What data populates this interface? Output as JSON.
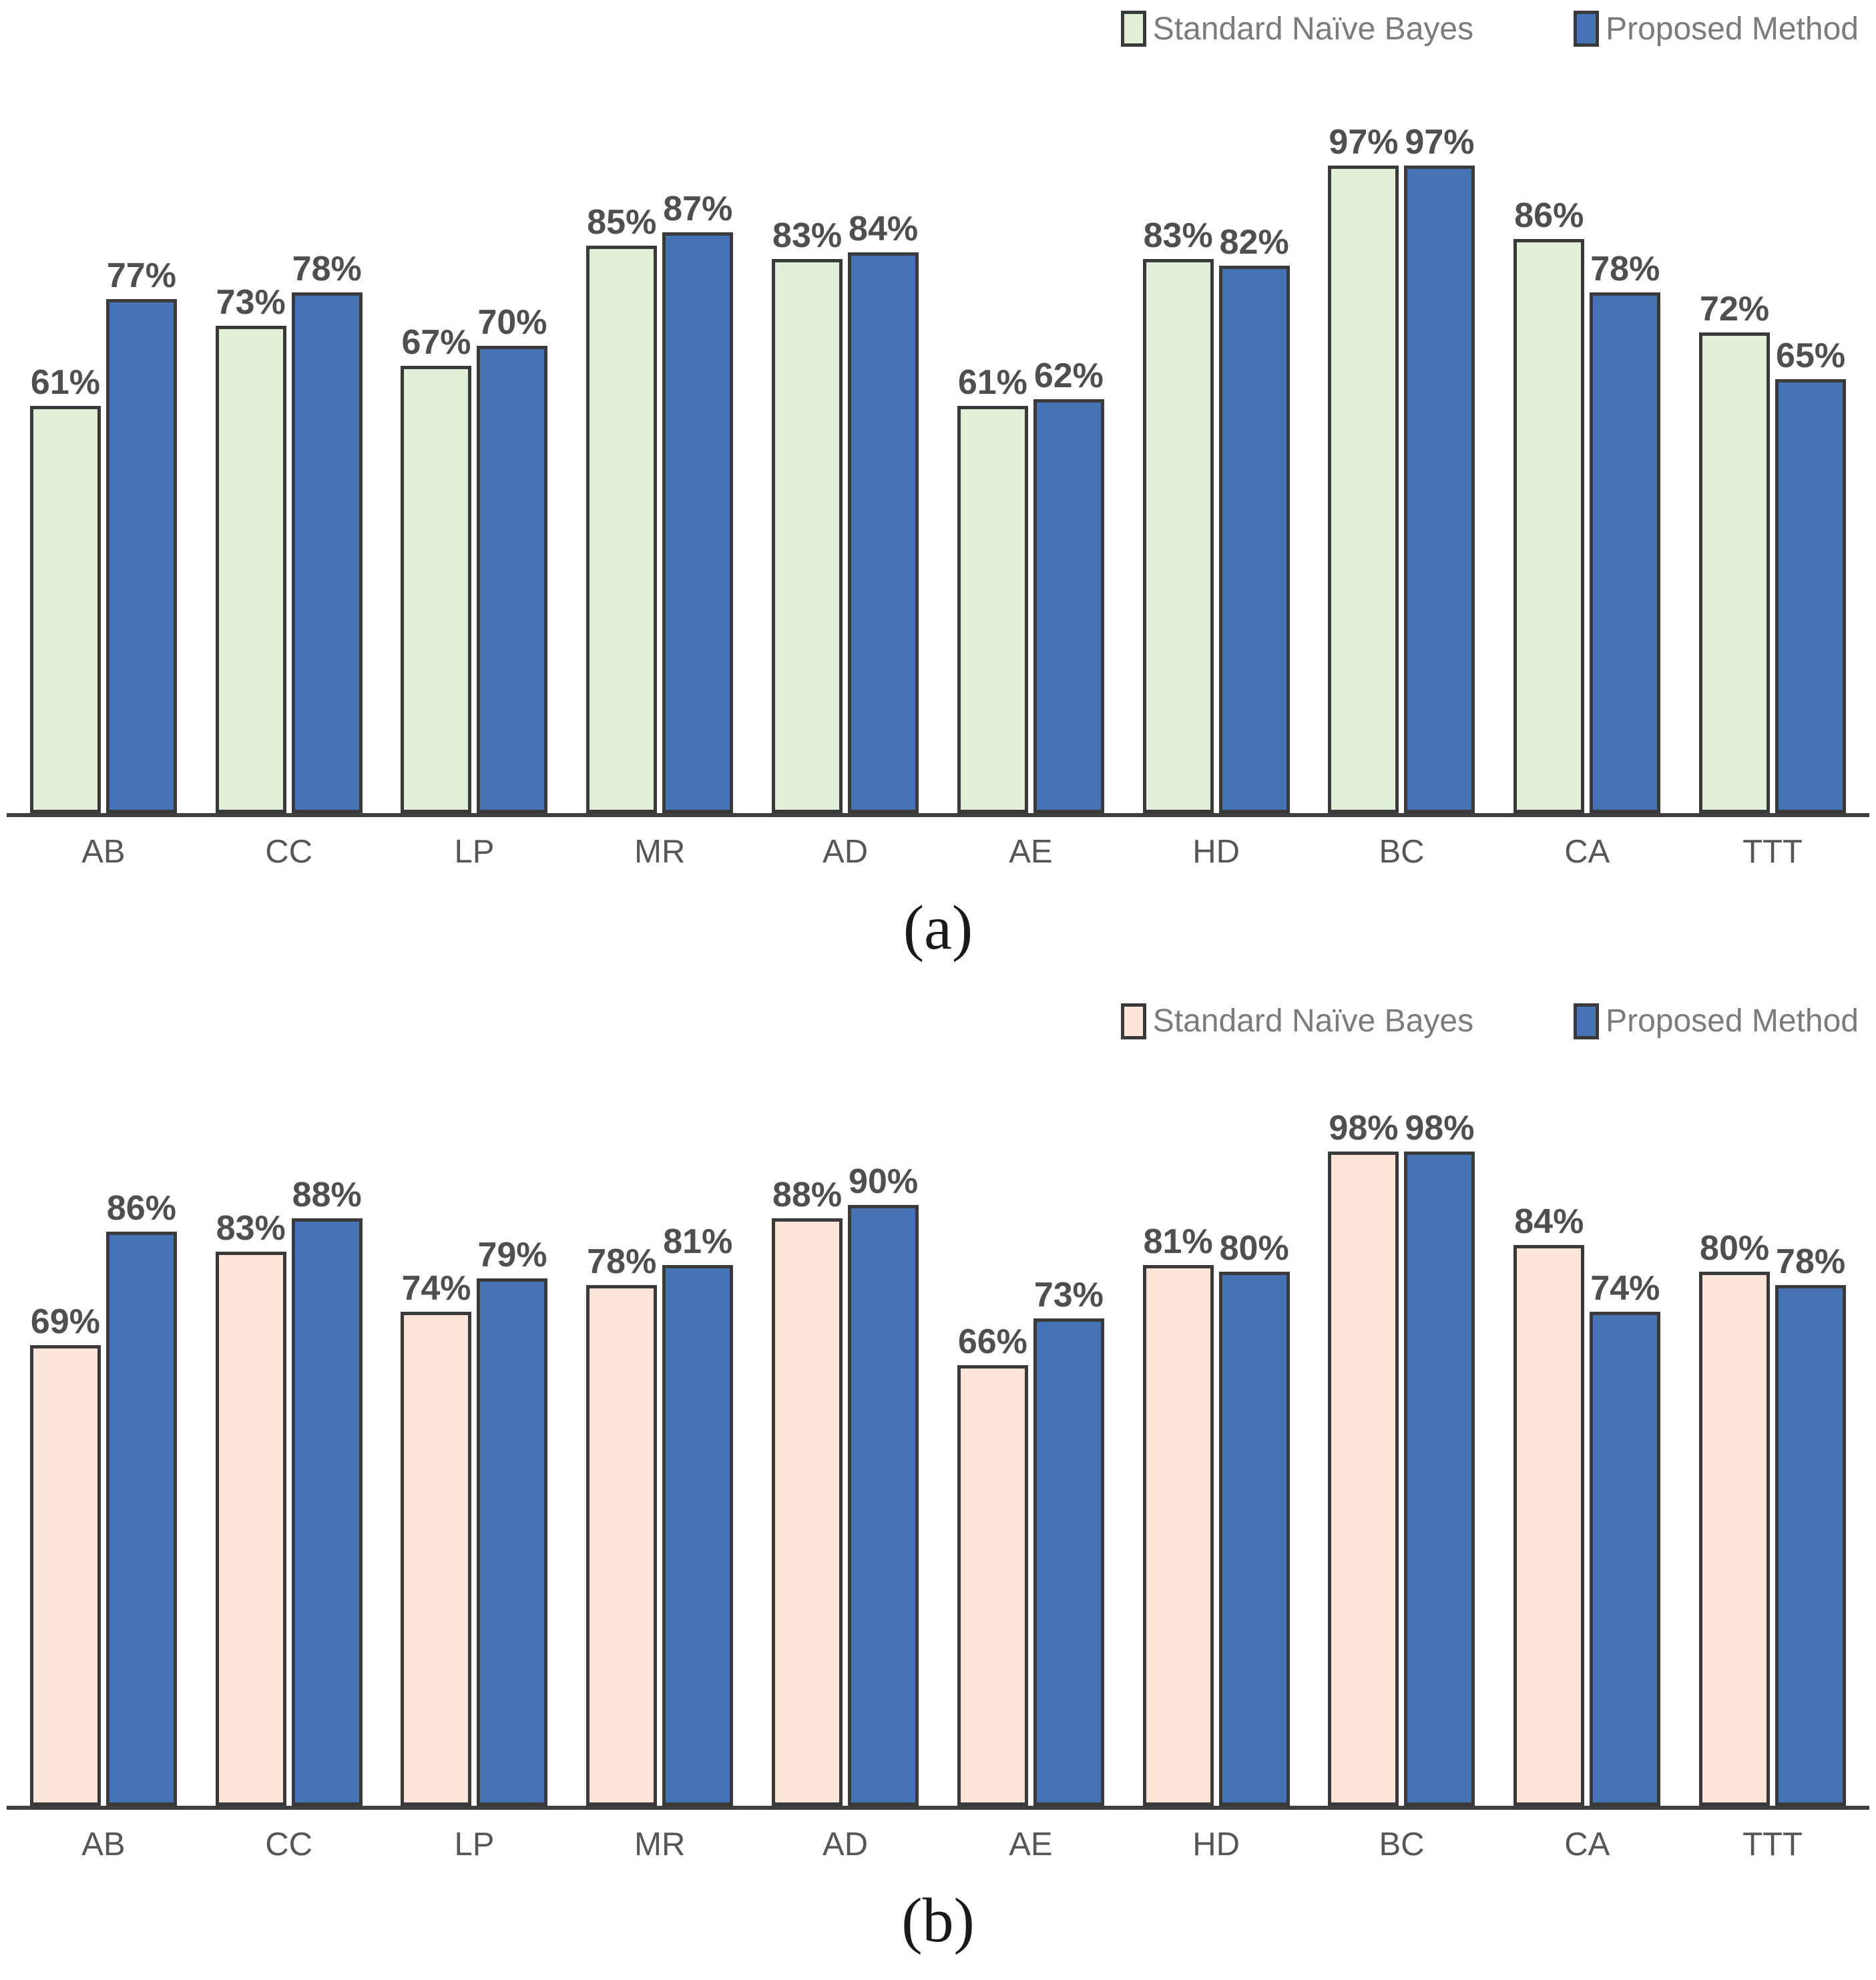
{
  "colors": {
    "background": "#ffffff",
    "bar_border": "#3a3a3a",
    "axis_line": "#3f3f3f",
    "value_label": "#4f4f4f",
    "tick_label": "#565656",
    "legend_text": "#7b7b7b"
  },
  "chart_data": [
    {
      "id": "a",
      "type": "bar",
      "caption": "(a)",
      "categories": [
        "AB",
        "CC",
        "LP",
        "MR",
        "AD",
        "AE",
        "HD",
        "BC",
        "CA",
        "TTT"
      ],
      "series": [
        {
          "name": "Standard Naïve Bayes",
          "color": "#e1eed8",
          "values": [
            61,
            73,
            67,
            85,
            83,
            61,
            83,
            97,
            86,
            72
          ]
        },
        {
          "name": "Proposed Method",
          "color": "#4673b5",
          "values": [
            77,
            78,
            70,
            87,
            84,
            62,
            82,
            97,
            78,
            65
          ]
        }
      ],
      "value_suffix": "%",
      "ylim": [
        0,
        100
      ],
      "grid": false,
      "legend_position": "top-right",
      "data_labels": true
    },
    {
      "id": "b",
      "type": "bar",
      "caption": "(b)",
      "categories": [
        "AB",
        "CC",
        "LP",
        "MR",
        "AD",
        "AE",
        "HD",
        "BC",
        "CA",
        "TTT"
      ],
      "series": [
        {
          "name": "Standard Naïve Bayes",
          "color": "#fce5d8",
          "values": [
            69,
            83,
            74,
            78,
            88,
            66,
            81,
            98,
            84,
            80
          ]
        },
        {
          "name": "Proposed Method",
          "color": "#4673b5",
          "values": [
            86,
            88,
            79,
            81,
            90,
            73,
            80,
            98,
            74,
            78
          ]
        }
      ],
      "value_suffix": "%",
      "ylim": [
        0,
        100
      ],
      "grid": false,
      "legend_position": "top-right",
      "data_labels": true
    }
  ]
}
